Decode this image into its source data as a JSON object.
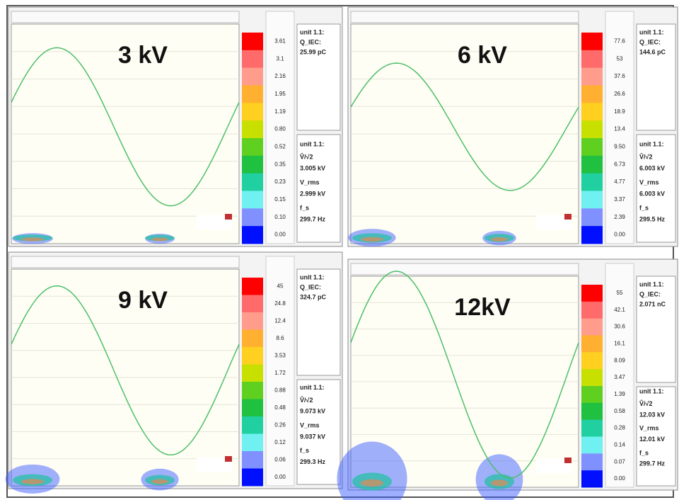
{
  "panels": [
    {
      "label": "3 kV",
      "scale": [
        "3.61",
        "3.1",
        "2.16",
        "1.95",
        "1.19",
        "0.80",
        "0.52",
        "0.35",
        "0.23",
        "0.15",
        "0.10",
        "0.00"
      ],
      "charge": {
        "unit": "unit 1.1:",
        "name": "Q_IEC:",
        "value": "25.99 pC"
      },
      "voltage": {
        "unit": "unit 1.1:",
        "peak_name": "V̂/√2",
        "peak": "3.005 kV",
        "rms_name": "V_rms",
        "rms": "2.999 kV",
        "freq_name": "f_s",
        "freq": "299.7 Hz"
      }
    },
    {
      "label": "6 kV",
      "scale": [
        "77.6",
        "53",
        "37.6",
        "26.6",
        "18.9",
        "13.4",
        "9.50",
        "6.73",
        "4.77",
        "3.37",
        "2.39",
        "0.00"
      ],
      "charge": {
        "unit": "unit 1.1:",
        "name": "Q_IEC:",
        "value": "144.6 pC"
      },
      "voltage": {
        "unit": "unit 1.1:",
        "peak_name": "V̂/√2",
        "peak": "6.003 kV",
        "rms_name": "V_rms",
        "rms": "6.003 kV",
        "freq_name": "f_s",
        "freq": "299.5 Hz"
      }
    },
    {
      "label": "9 kV",
      "scale": [
        "45",
        "24.8",
        "12.4",
        "8.6",
        "3.53",
        "1.72",
        "0.88",
        "0.48",
        "0.26",
        "0.12",
        "0.06",
        "0.00"
      ],
      "charge": {
        "unit": "unit 1.1:",
        "name": "Q_IEC:",
        "value": "324.7 pC"
      },
      "voltage": {
        "unit": "unit 1.1:",
        "peak_name": "V̂/√2",
        "peak": "9.073 kV",
        "rms_name": "V_rms",
        "rms": "9.037 kV",
        "freq_name": "f_s",
        "freq": "299.3 Hz"
      }
    },
    {
      "label": "12kV",
      "scale": [
        "55",
        "42.1",
        "30.6",
        "16.1",
        "8.09",
        "3.47",
        "1.39",
        "0.58",
        "0.28",
        "0.14",
        "0.07",
        "0.00"
      ],
      "charge": {
        "unit": "unit 1.1:",
        "name": "Q_IEC:",
        "value": "2.071 nC"
      },
      "voltage": {
        "unit": "unit 1.1:",
        "peak_name": "V̂/√2",
        "peak": "12.03 kV",
        "rms_name": "V_rms",
        "rms": "12.01 kV",
        "freq_name": "f_s",
        "freq": "299.7 Hz"
      }
    }
  ]
}
